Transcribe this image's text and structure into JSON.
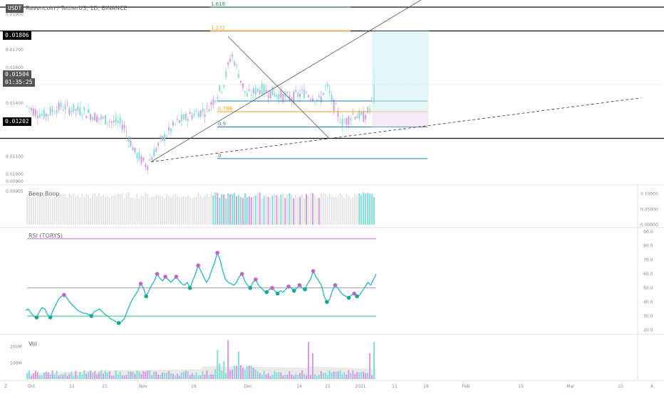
{
  "header": {
    "symbol_badge": "USDT",
    "title": "Ravencoin / TetherUS, 1D, BINANCE"
  },
  "price_tags": {
    "level_high": "0.01806",
    "current_price": "0.01504",
    "countdown": "01:35:25",
    "level_low": "0.01202"
  },
  "fib_labels": {
    "f1618": "1.618",
    "f1272": "1.272",
    "f0786": "0.786",
    "f05": "0.5",
    "f0": "0"
  },
  "colors": {
    "bull": "#7fe0d5",
    "bear": "#d59ae6",
    "rsi_line": "#22b5c8",
    "fib_green": "#2e8b57",
    "fib_orange": "#f39c12",
    "fib_blue": "#1f77b4",
    "rsi_top": "#d36fd8",
    "rsi_low": "#2ecc71"
  },
  "panels": {
    "beep_boop": "Beep Boop",
    "rsi": "RSI (TORYS)",
    "vol": "Vol"
  },
  "chart_data": [
    {
      "type": "candlestick",
      "title": "Ravencoin / TetherUS, 1D, BINANCE",
      "ylim": [
        0.0094,
        0.0198
      ],
      "y_ticks": [
        "0.01900",
        "0.01806",
        "0.01700",
        "0.01600",
        "0.01504",
        "0.01400",
        "0.01300",
        "0.01202",
        "0.01100",
        "0.01000",
        "0.00960",
        "0.00905"
      ],
      "x_ticks": [
        "Oct",
        "12",
        "21",
        "Nov",
        "16",
        "Dec",
        "14",
        "21",
        "2021",
        "11",
        "18",
        "Feb",
        "15",
        "Mar",
        "15",
        "A"
      ],
      "horizontal_levels": [
        0.0194,
        0.01806,
        0.01504,
        0.01202
      ],
      "fib_levels": [
        {
          "label": "1.618",
          "value": 0.0194
        },
        {
          "label": "1.272",
          "value": 0.01806
        },
        {
          "label": "0.786",
          "value": 0.01352
        },
        {
          "label": "0.5",
          "value": 0.01266
        },
        {
          "label": "0",
          "value": 0.01088
        }
      ],
      "last_price": 0.01504
    },
    {
      "type": "bar",
      "title": "Beep Boop",
      "y_ticks": [
        "0.10000",
        "0.05000",
        "0.00000"
      ],
      "ylim": [
        0,
        0.12
      ]
    },
    {
      "type": "line",
      "title": "RSI (TORYS)",
      "y_ticks": [
        "90.0",
        "80.0",
        "70.0",
        "60.0",
        "50.0",
        "40.0",
        "30.0",
        "20.0"
      ],
      "ylim": [
        18,
        92
      ],
      "reference_lines": [
        85,
        50,
        30
      ],
      "values": [
        34,
        35,
        32,
        30,
        29,
        33,
        36,
        35,
        31,
        29,
        34,
        38,
        42,
        44,
        45,
        43,
        40,
        38,
        36,
        34,
        33,
        32,
        32,
        31,
        30,
        33,
        34,
        35,
        33,
        31,
        30,
        28,
        27,
        26,
        25,
        26,
        28,
        33,
        38,
        42,
        45,
        48,
        53,
        50,
        44,
        48,
        52,
        55,
        60,
        57,
        55,
        58,
        56,
        54,
        56,
        58,
        55,
        53,
        52,
        54,
        50,
        55,
        60,
        66,
        62,
        58,
        54,
        57,
        63,
        68,
        75,
        70,
        62,
        56,
        54,
        53,
        52,
        54,
        58,
        60,
        55,
        52,
        50,
        54,
        56,
        52,
        50,
        48,
        47,
        49,
        50,
        48,
        46,
        48,
        47,
        49,
        51,
        50,
        48,
        50,
        52,
        50,
        49,
        53,
        56,
        62,
        58,
        55,
        52,
        44,
        40,
        42,
        48,
        52,
        50,
        47,
        45,
        44,
        43,
        45,
        46,
        44,
        45,
        48,
        51,
        54,
        52,
        56,
        60
      ]
    },
    {
      "type": "bar",
      "title": "Vol",
      "y_ticks": [
        "200M",
        "100M"
      ],
      "ylim": [
        0,
        260
      ]
    }
  ]
}
